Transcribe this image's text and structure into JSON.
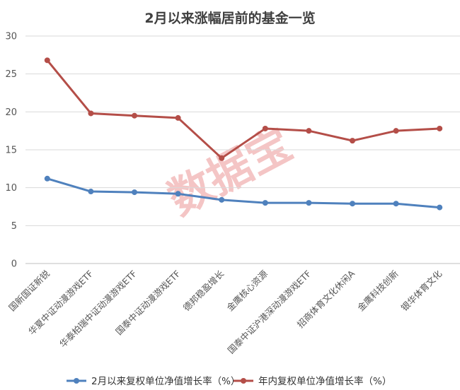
{
  "chart_data": {
    "type": "line",
    "title": "2月以来涨幅居前的基金一览",
    "watermark": "数据宝",
    "categories": [
      "国新国证新锐",
      "华夏中证动漫游戏ETF",
      "华泰柏瑞中证动漫游戏ETF",
      "国泰中证动漫游戏ETF",
      "德邦稳盈增长",
      "金鹰核心资源",
      "国泰中证沪港深动漫游戏ETF",
      "招商体育文化休闲A",
      "金鹰科技创新",
      "银华体育文化"
    ],
    "series": [
      {
        "name": "2月以来复权单位净值增长率（%）",
        "color": "#4f81bd",
        "values": [
          11.2,
          9.5,
          9.4,
          9.2,
          8.4,
          8.0,
          8.0,
          7.9,
          7.9,
          7.4
        ]
      },
      {
        "name": "年内复权单位净值增长率（%）",
        "color": "#b44e48",
        "values": [
          26.8,
          19.8,
          19.5,
          19.2,
          13.9,
          17.8,
          17.5,
          16.2,
          17.5,
          17.8
        ]
      }
    ],
    "ylim": [
      0,
      30
    ],
    "yticks": [
      0,
      5,
      10,
      15,
      20,
      25,
      30
    ],
    "grid": true,
    "legend": "bottom",
    "xlabel": "",
    "ylabel": ""
  }
}
